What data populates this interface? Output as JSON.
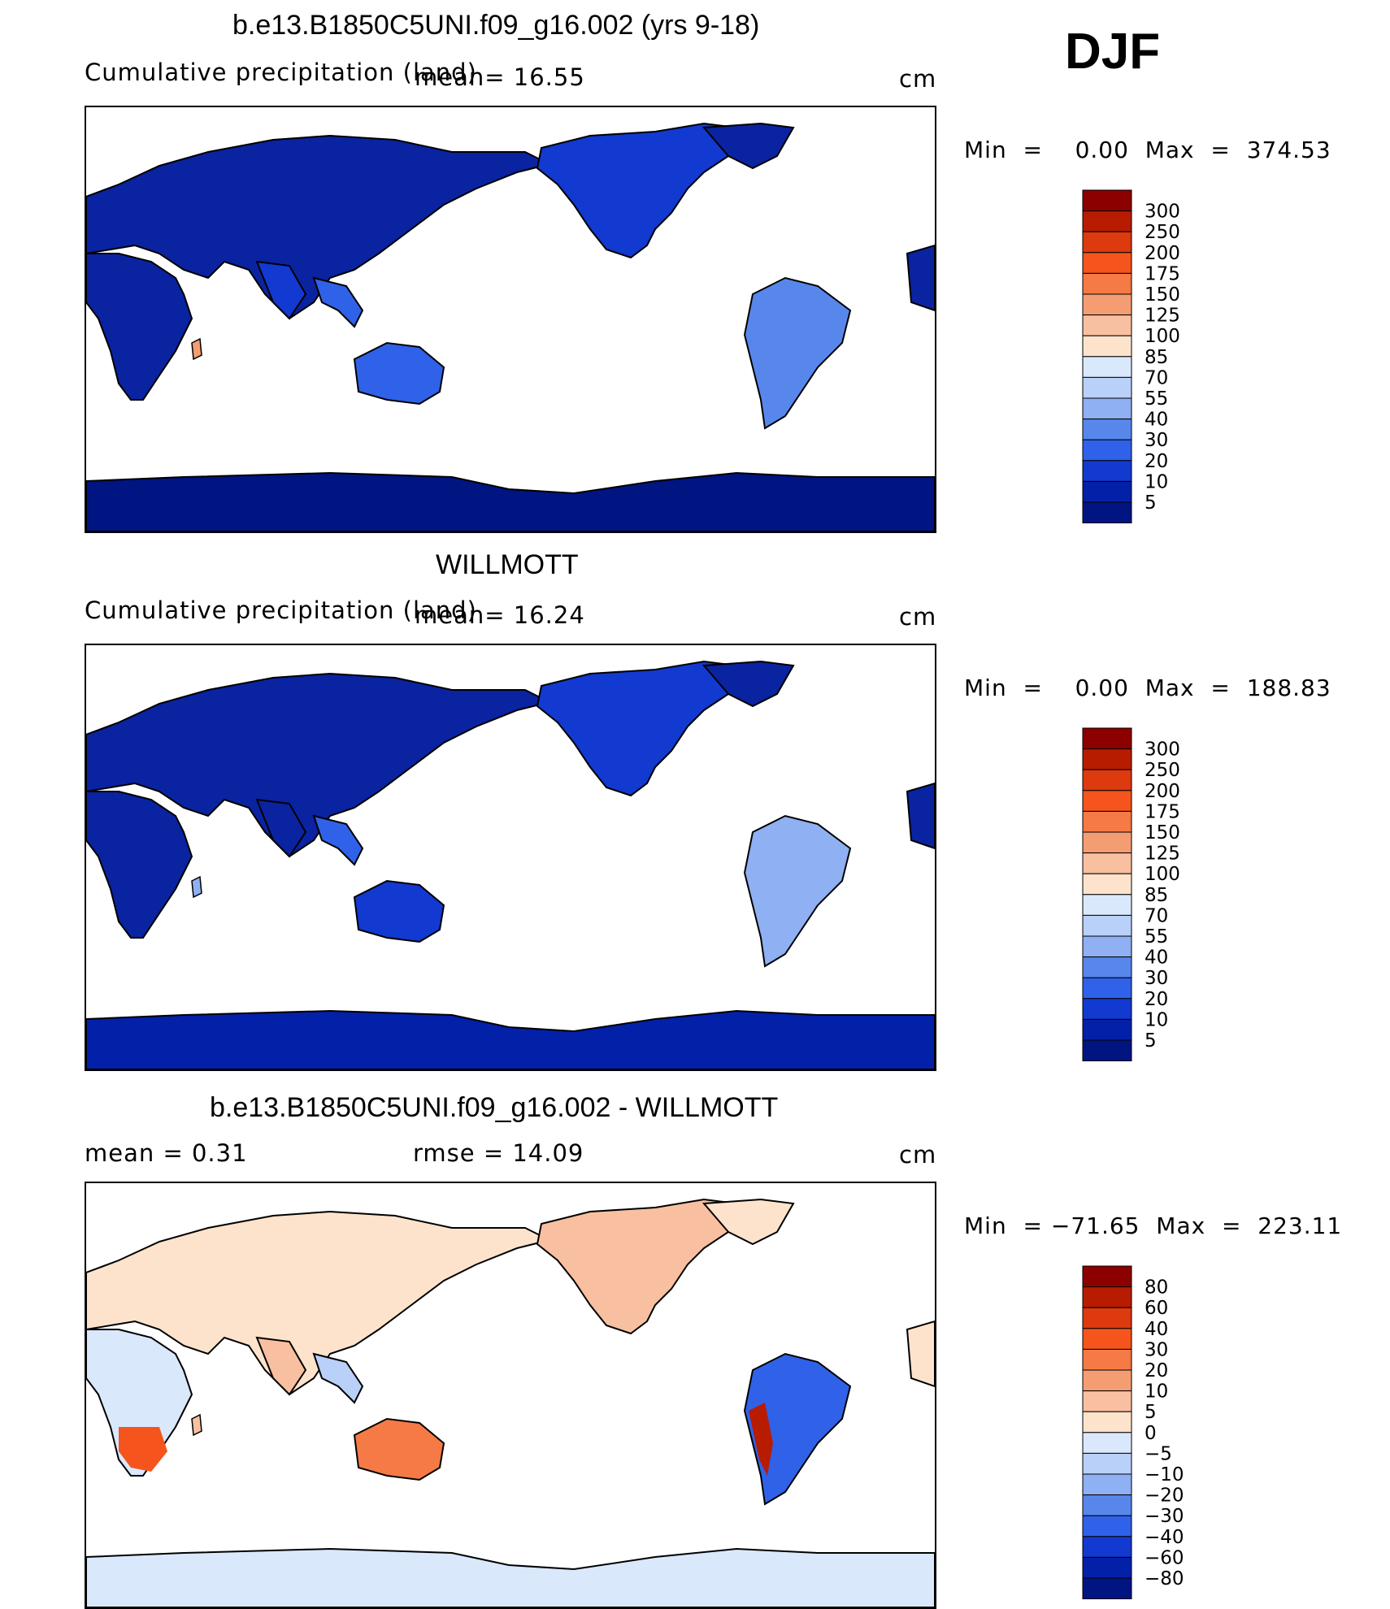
{
  "season": "DJF",
  "panels": [
    {
      "title": "b.e13.B1850C5UNI.f09_g16.002 (yrs 9-18)",
      "left_text": "Cumulative precipitation (land)",
      "stat_text": "mean=   16.55",
      "units": "cm",
      "min_label": "Min  =",
      "min_value": "0.00",
      "max_label": "Max  =",
      "max_value": "374.53"
    },
    {
      "title": "WILLMOTT",
      "left_text": "Cumulative precipitation (land)",
      "stat_text": "mean=   16.24",
      "units": "cm",
      "min_label": "Min  =",
      "min_value": "0.00",
      "max_label": "Max  =",
      "max_value": "188.83"
    },
    {
      "title": "b.e13.B1850C5UNI.f09_g16.002 - WILLMOTT",
      "left_text": "mean  =     0.31",
      "stat_text": "rmse  =     14.09",
      "units": "cm",
      "min_label": "Min  =",
      "min_value": "−71.65",
      "max_label": "Max  =",
      "max_value": "223.11"
    }
  ],
  "colorbars": {
    "precip": {
      "labels": [
        "300",
        "250",
        "200",
        "175",
        "150",
        "125",
        "100",
        "85",
        "70",
        "55",
        "40",
        "30",
        "20",
        "10",
        "5"
      ],
      "colors": [
        "#8c0000",
        "#b81c00",
        "#dd3a10",
        "#f5551c",
        "#f57a45",
        "#f59d72",
        "#f8c0a0",
        "#fde3cc",
        "#d9e8fb",
        "#b9d0f8",
        "#8fb0f2",
        "#5887ec",
        "#2f62e8",
        "#1239d0",
        "#0320a8",
        "#001482"
      ]
    },
    "diff": {
      "labels": [
        "80",
        "60",
        "40",
        "30",
        "20",
        "10",
        "5",
        "0",
        "−5",
        "−10",
        "−20",
        "−30",
        "−40",
        "−60",
        "−80"
      ],
      "colors": [
        "#8c0000",
        "#b81c00",
        "#dd3a10",
        "#f5551c",
        "#f57a45",
        "#f59d72",
        "#f8c0a0",
        "#fde3cc",
        "#d9e8fb",
        "#b9d0f8",
        "#8fb0f2",
        "#5887ec",
        "#2f62e8",
        "#1239d0",
        "#0320a8",
        "#001482"
      ]
    }
  },
  "chart_data": [
    {
      "type": "heatmap",
      "title": "b.e13.B1850C5UNI.f09_g16.002 (yrs 9-18)",
      "subtitle": "Cumulative precipitation (land)",
      "mean": 16.55,
      "min": 0.0,
      "max": 374.53,
      "units": "cm",
      "legend_levels": [
        5,
        10,
        20,
        30,
        40,
        55,
        70,
        85,
        100,
        125,
        150,
        175,
        200,
        250,
        300
      ]
    },
    {
      "type": "heatmap",
      "title": "WILLMOTT",
      "subtitle": "Cumulative precipitation (land)",
      "mean": 16.24,
      "min": 0.0,
      "max": 188.83,
      "units": "cm",
      "legend_levels": [
        5,
        10,
        20,
        30,
        40,
        55,
        70,
        85,
        100,
        125,
        150,
        175,
        200,
        250,
        300
      ]
    },
    {
      "type": "heatmap",
      "title": "b.e13.B1850C5UNI.f09_g16.002 - WILLMOTT",
      "mean": 0.31,
      "rmse": 14.09,
      "min": -71.65,
      "max": 223.11,
      "units": "cm",
      "legend_levels": [
        -80,
        -60,
        -40,
        -30,
        -20,
        -10,
        -5,
        0,
        5,
        10,
        20,
        30,
        40,
        60,
        80
      ]
    }
  ]
}
